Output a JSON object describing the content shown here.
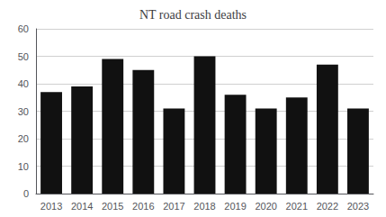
{
  "chart_data": {
    "type": "bar",
    "title": "NT road crash deaths",
    "categories": [
      "2013",
      "2014",
      "2015",
      "2016",
      "2017",
      "2018",
      "2019",
      "2020",
      "2021",
      "2022",
      "2023"
    ],
    "values": [
      37,
      39,
      49,
      45,
      31,
      50,
      36,
      31,
      35,
      47,
      31
    ],
    "color": "#111111",
    "ylim": [
      0,
      60
    ],
    "yticks": [
      0,
      10,
      20,
      30,
      40,
      50,
      60
    ],
    "grid": true
  }
}
